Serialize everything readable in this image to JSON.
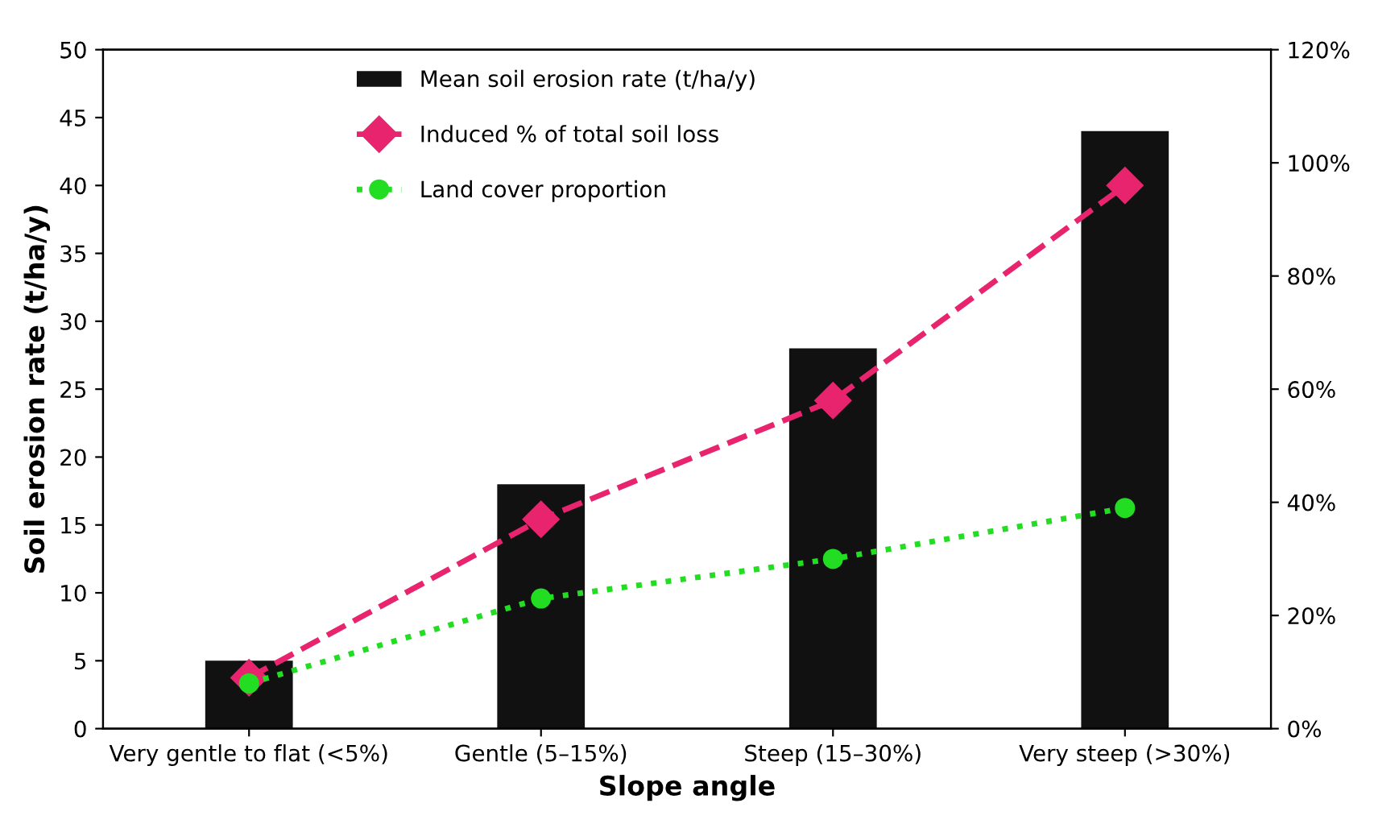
{
  "chart_data": {
    "type": "bar",
    "xlabel": "Slope angle",
    "ylabel": "Soil erosion rate (t/ha/y)",
    "categories": [
      "Very gentle to flat (<5%)",
      "Gentle (5–15%)",
      "Steep (15–30%)",
      "Very steep (>30%)"
    ],
    "series": [
      {
        "name": "Mean soil erosion rate (t/ha/y)",
        "color": "#111111",
        "values": [
          5,
          18,
          28,
          44
        ]
      },
      {
        "name": "Induced % of total soil loss",
        "type": "line",
        "axis": "y2",
        "color": "#e8246e",
        "marker": "diamond",
        "line_style": "dashed",
        "values": [
          9,
          37,
          58,
          96
        ]
      },
      {
        "name": "Land cover proportion",
        "type": "line",
        "axis": "y2",
        "color": "#22dd22",
        "marker": "circle",
        "line_style": "dotted",
        "values": [
          8,
          23,
          30,
          39
        ]
      }
    ],
    "ylim": [
      0,
      50
    ],
    "yticks": [
      0,
      5,
      10,
      15,
      20,
      25,
      30,
      35,
      40,
      45,
      50
    ],
    "y2lim": [
      0,
      120
    ],
    "y2ticks": [
      {
        "value": 0,
        "label": "0%"
      },
      {
        "value": 20,
        "label": "20%"
      },
      {
        "value": 40,
        "label": "40%"
      },
      {
        "value": 60,
        "label": "60%"
      },
      {
        "value": 80,
        "label": "80%"
      },
      {
        "value": 100,
        "label": "100%"
      },
      {
        "value": 120,
        "label": "120%"
      }
    ],
    "grid": false,
    "legend": "top left"
  }
}
